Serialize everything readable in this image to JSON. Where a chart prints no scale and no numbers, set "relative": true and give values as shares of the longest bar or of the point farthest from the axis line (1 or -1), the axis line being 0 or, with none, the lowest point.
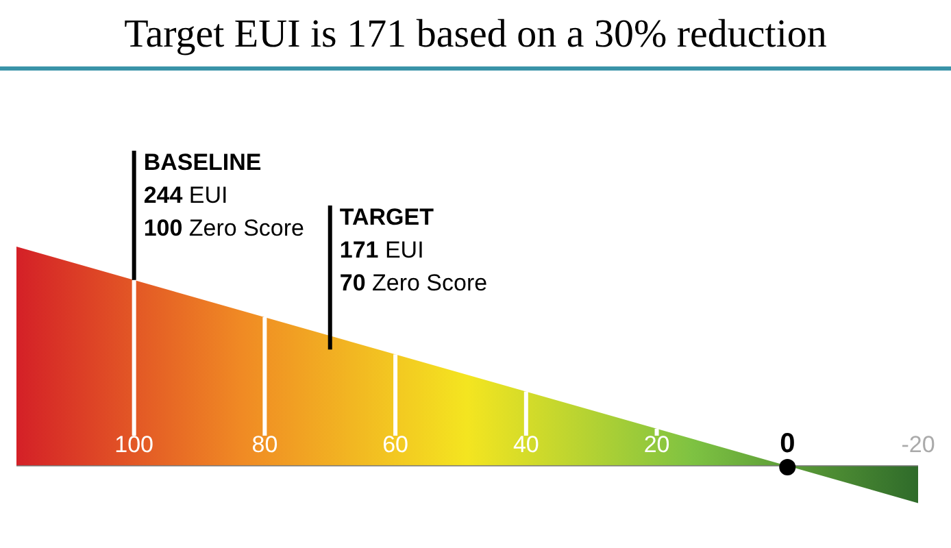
{
  "chart_data": {
    "type": "area",
    "title": "Target EUI is 171 based on a 30% reduction",
    "relative": true,
    "x": [
      118,
      -20
    ],
    "series": [
      {
        "values": [
          1,
          -0.17
        ],
        "color": "#d42027"
      }
    ],
    "colors": [
      "#f08a24",
      "#f4e520",
      "#7ec242",
      "#2f6b2a"
    ],
    "xlim": [
      118,
      -20
    ],
    "xticks": [
      100,
      80,
      60,
      40,
      20,
      0,
      -20
    ],
    "grid": "x",
    "ref_lines": [
      {
        "axis": "x",
        "value": 100,
        "label": "BASELINE\n244 EUI\n100 Zero Score"
      },
      {
        "axis": "x",
        "value": 70,
        "label": "TARGET\n171 EUI\n70 Zero Score"
      }
    ]
  }
}
